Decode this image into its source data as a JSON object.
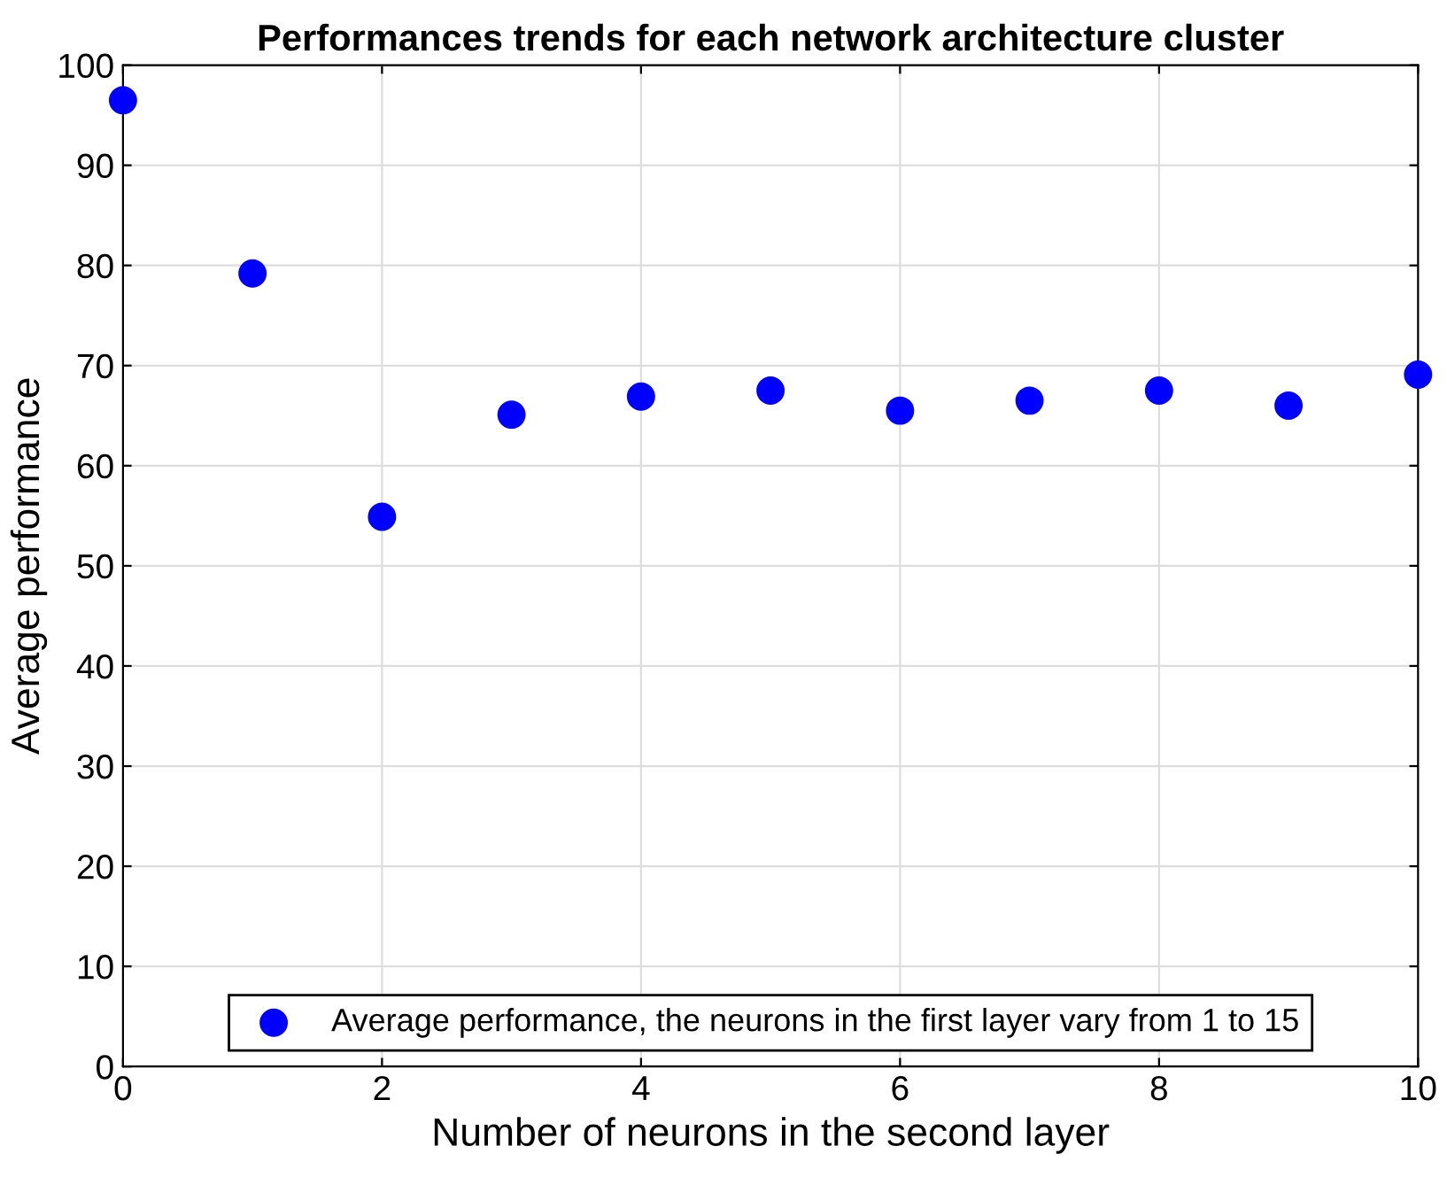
{
  "chart_data": {
    "type": "scatter",
    "title": "Performances trends for each network architecture cluster",
    "xlabel": "Number of neurons in the second layer",
    "ylabel": "Average performance",
    "x": [
      0,
      1,
      2,
      3,
      4,
      5,
      6,
      7,
      8,
      9,
      10
    ],
    "series": [
      {
        "name": "Average performance, the neurons in the first layer vary from 1 to 15",
        "color": "#0000ff",
        "values": [
          96.5,
          79.2,
          54.9,
          65.1,
          66.9,
          67.5,
          65.5,
          66.5,
          67.5,
          66.0,
          69.1
        ]
      }
    ],
    "xlim": [
      0,
      10
    ],
    "xticks": [
      0,
      2,
      4,
      6,
      8,
      10
    ],
    "ylim": [
      0,
      100
    ],
    "yticks": [
      0,
      10,
      20,
      30,
      40,
      50,
      60,
      70,
      80,
      90,
      100
    ],
    "grid": true,
    "legend": "bottom",
    "marker": "circle"
  }
}
